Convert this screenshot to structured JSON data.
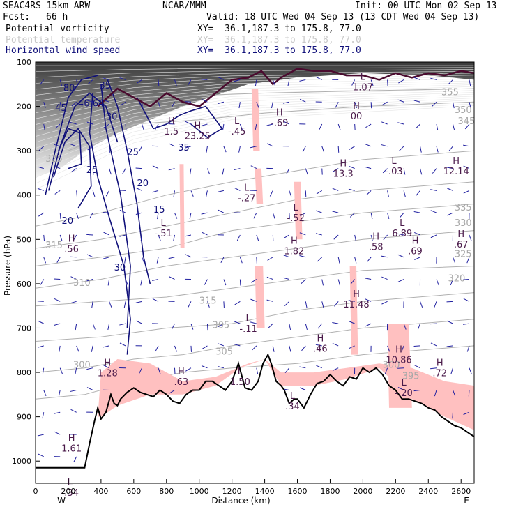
{
  "header": {
    "model": "SEAC4RS 15km ARW",
    "org": "NCAR/MMM",
    "init": "Init: 00 UTC Mon 02 Sep 13",
    "fcst_label": "Fcst:",
    "fcst_value": "66 h",
    "valid": "Valid: 18 UTC Wed 04 Sep 13 (13 CDT Wed 04 Sep 13)"
  },
  "legend": [
    {
      "name": "Potential vorticity",
      "xy": "XY=  36.1,187.3 to 175.8, 77.0",
      "color": "#000000"
    },
    {
      "name": "Potential temperature",
      "xy": "XY=  36.1,187.3 to 175.8, 77.0",
      "color": "#c8c8c8"
    },
    {
      "name": "Horizontal wind speed",
      "xy": "XY=  36.1,187.3 to 175.8, 77.0",
      "color": "#10107a"
    }
  ],
  "chart_data": {
    "type": "cross-section",
    "xlabel": "Distance (km)",
    "ylabel": "Pressure (hPa)",
    "xlim": [
      0,
      2680
    ],
    "ylim": [
      1050,
      100
    ],
    "x_ticks": [
      "0",
      "200",
      "400",
      "600",
      "800",
      "1000",
      "1200",
      "1400",
      "1600",
      "1800",
      "2000",
      "2200",
      "2400",
      "2600"
    ],
    "x_tick_values": [
      0,
      200,
      400,
      600,
      800,
      1000,
      1200,
      1400,
      1600,
      1800,
      2000,
      2200,
      2400,
      2600
    ],
    "y_ticks": [
      "100",
      "200",
      "300",
      "400",
      "500",
      "600",
      "700",
      "800",
      "900",
      "1000"
    ],
    "y_tick_values": [
      100,
      200,
      300,
      400,
      500,
      600,
      700,
      800,
      900,
      1000
    ],
    "x_end_labels": {
      "left": "W",
      "right": "E"
    },
    "terrain": {
      "x": [
        0,
        300,
        330,
        360,
        380,
        400,
        430,
        460,
        480,
        500,
        520,
        560,
        600,
        640,
        680,
        720,
        760,
        800,
        840,
        880,
        920,
        960,
        1000,
        1040,
        1080,
        1120,
        1160,
        1200,
        1240,
        1280,
        1320,
        1360,
        1390,
        1420,
        1440,
        1470,
        1500,
        1520,
        1550,
        1580,
        1600,
        1640,
        1680,
        1720,
        1760,
        1800,
        1840,
        1880,
        1920,
        1960,
        2000,
        2040,
        2080,
        2120,
        2160,
        2200,
        2240,
        2280,
        2320,
        2360,
        2400,
        2440,
        2480,
        2520,
        2560,
        2600,
        2640,
        2680
      ],
      "p": [
        1015,
        1015,
        960,
        910,
        880,
        905,
        890,
        850,
        870,
        875,
        860,
        845,
        835,
        845,
        850,
        855,
        840,
        850,
        865,
        870,
        850,
        840,
        840,
        820,
        820,
        830,
        840,
        820,
        780,
        835,
        840,
        820,
        780,
        760,
        780,
        820,
        830,
        840,
        870,
        860,
        860,
        880,
        850,
        825,
        820,
        805,
        820,
        830,
        810,
        815,
        790,
        800,
        790,
        805,
        830,
        840,
        860,
        860,
        865,
        870,
        880,
        885,
        900,
        910,
        920,
        925,
        935,
        945
      ]
    },
    "wind_speed_contours": [
      "80",
      "45",
      "46.64",
      "35",
      "30",
      "25",
      "20",
      "15",
      "20",
      "25",
      "30",
      "35"
    ],
    "theta_labels": [
      "355",
      "350",
      "345",
      "335",
      "330",
      "325",
      "320",
      "315",
      "310",
      "305",
      "300",
      "325",
      "315",
      "305",
      "300",
      "395"
    ],
    "extrema": [
      {
        "label": "H",
        "value": "1.5",
        "x": 830,
        "p": 240
      },
      {
        "label": "H",
        "value": "23.25",
        "x": 990,
        "p": 250
      },
      {
        "label": "L",
        "value": "-.45",
        "x": 1230,
        "p": 240
      },
      {
        "label": "H",
        "value": "-.69",
        "x": 1490,
        "p": 220
      },
      {
        "label": "L",
        "value": "1.07",
        "x": 2000,
        "p": 140
      },
      {
        "label": "H",
        "value": "00",
        "x": 1960,
        "p": 205
      },
      {
        "label": "H",
        "value": "13.3",
        "x": 1880,
        "p": 335
      },
      {
        "label": "L",
        "value": "-.03",
        "x": 2190,
        "p": 330
      },
      {
        "label": "H",
        "value": "12.14",
        "x": 2570,
        "p": 330
      },
      {
        "label": "L",
        "value": "-.27",
        "x": 1290,
        "p": 390
      },
      {
        "label": "L",
        "value": "-.52",
        "x": 1590,
        "p": 435
      },
      {
        "label": "H",
        "value": "1.82",
        "x": 1580,
        "p": 510
      },
      {
        "label": "L",
        "value": "-.51",
        "x": 780,
        "p": 470
      },
      {
        "label": "H",
        "value": ".58",
        "x": 2080,
        "p": 500
      },
      {
        "label": "L",
        "value": "6.89",
        "x": 2240,
        "p": 470
      },
      {
        "label": "H",
        "value": ".69",
        "x": 2320,
        "p": 510
      },
      {
        "label": "H",
        "value": ".67",
        "x": 2600,
        "p": 495
      },
      {
        "label": "H",
        "value": ".56",
        "x": 220,
        "p": 505
      },
      {
        "label": "L",
        "value": "-.11",
        "x": 1300,
        "p": 685
      },
      {
        "label": "H",
        "value": "11.48",
        "x": 1960,
        "p": 630
      },
      {
        "label": "H",
        "value": ".46",
        "x": 1740,
        "p": 730
      },
      {
        "label": "H",
        "value": "10.86",
        "x": 2220,
        "p": 755
      },
      {
        "label": "H",
        "value": ".72",
        "x": 2470,
        "p": 785
      },
      {
        "label": "H",
        "value": "1.28",
        "x": 440,
        "p": 785
      },
      {
        "label": "H",
        "value": ".63",
        "x": 890,
        "p": 805
      },
      {
        "label": "L",
        "value": "1.50",
        "x": 1250,
        "p": 805
      },
      {
        "label": "L",
        "value": "-.20",
        "x": 2250,
        "p": 830
      },
      {
        "label": "L",
        "value": ".34",
        "x": 1570,
        "p": 860
      },
      {
        "label": "H",
        "value": "1.61",
        "x": 220,
        "p": 955
      },
      {
        "label": "L",
        "value": "-.34",
        "x": 210,
        "p": 1055
      }
    ]
  }
}
